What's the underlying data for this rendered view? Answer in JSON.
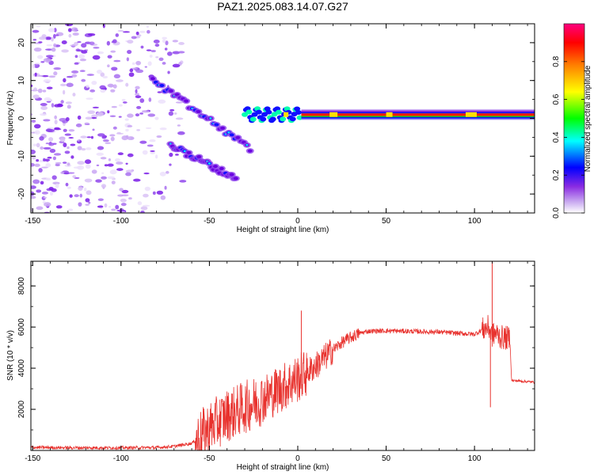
{
  "title": "PAZ1.2025.083.14.07.G27",
  "chart_data": [
    {
      "type": "heatmap",
      "xlabel": "Height of straight line (km)",
      "ylabel": "Frequency (Hz)",
      "xlim": [
        -151,
        134
      ],
      "ylim": [
        -25,
        25
      ],
      "xticks": [
        "-150",
        "-100",
        "-50",
        "0",
        "50",
        "100"
      ],
      "yticks": [
        "-20",
        "-10",
        "0",
        "10",
        "20"
      ],
      "colorbar": {
        "label": "Normalized spectral amplitude",
        "range": [
          0,
          1
        ],
        "ticks": [
          "0.0",
          "0.2",
          "0.4",
          "0.6",
          "0.8"
        ],
        "colormap": "rainbow"
      },
      "features": [
        {
          "name": "diffuse noise",
          "x": [
            -151,
            -65
          ],
          "y": [
            -25,
            25
          ],
          "amplitude": 0.1
        },
        {
          "name": "upper slanted trace",
          "x": [
            -82,
            -27
          ],
          "freq": [
            10,
            -8
          ],
          "amplitude": 0.25
        },
        {
          "name": "lower slanted trace",
          "x": [
            -72,
            -35
          ],
          "freq": [
            -7,
            -16
          ],
          "amplitude": 0.2
        },
        {
          "name": "main carrier",
          "x": [
            -27,
            134
          ],
          "freq": [
            1,
            1
          ],
          "amplitude": 0.95
        }
      ]
    },
    {
      "type": "line",
      "xlabel": "Height of straight line (km)",
      "ylabel": "SNR (10 * v/v)",
      "xlim": [
        -151,
        134
      ],
      "ylim": [
        0,
        9200
      ],
      "xticks": [
        "-150",
        "-100",
        "-50",
        "0",
        "50",
        "100"
      ],
      "yticks": [
        "2000",
        "4000",
        "6000",
        "8000"
      ],
      "color": "#e8322e",
      "series": [
        {
          "x": [
            -151,
            -140,
            -120,
            -100,
            -80,
            -70,
            -60,
            -55,
            -50,
            -45,
            -40,
            -35,
            -30,
            -25,
            -20,
            -15,
            -10,
            -5,
            0,
            5,
            10,
            15,
            20,
            25,
            30,
            35,
            40,
            50,
            60,
            70,
            80,
            90,
            100,
            105,
            108,
            110,
            112,
            115,
            120,
            121,
            125,
            134
          ],
          "values": [
            150,
            140,
            130,
            130,
            140,
            200,
            350,
            700,
            1100,
            1400,
            1700,
            1900,
            2100,
            2300,
            2500,
            2750,
            3000,
            3250,
            3500,
            3800,
            4100,
            4500,
            4900,
            5250,
            5500,
            5700,
            5800,
            5820,
            5800,
            5780,
            5760,
            5700,
            5650,
            5900,
            6000,
            5600,
            5700,
            5500,
            5450,
            3400,
            3380,
            3320
          ]
        }
      ],
      "spikes": [
        {
          "x": 2,
          "value": 6800
        },
        {
          "x": 109,
          "value": 2100
        },
        {
          "x": 110,
          "value": 9200
        }
      ]
    }
  ]
}
